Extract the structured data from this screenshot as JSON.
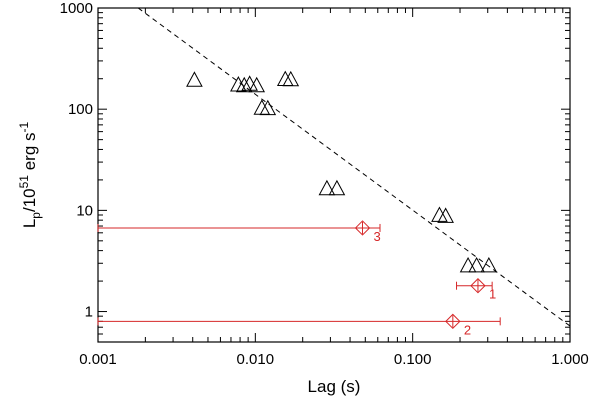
{
  "chart_data": {
    "type": "scatter",
    "title": "",
    "xlabel": "Lag (s)",
    "ylabel": {
      "base": "L",
      "base_sub": "p",
      "mid": "/10",
      "mid_sup": "51",
      "unit": " erg s",
      "unit_sup": "-1"
    },
    "x_scale": "log",
    "y_scale": "log",
    "xlim": [
      0.001,
      1.0
    ],
    "ylim": [
      0.5,
      1000
    ],
    "x_ticks": [
      {
        "value": 0.001,
        "label": "0.001"
      },
      {
        "value": 0.01,
        "label": "0.010"
      },
      {
        "value": 0.1,
        "label": "0.100"
      },
      {
        "value": 1.0,
        "label": "1.000"
      }
    ],
    "y_ticks": [
      {
        "value": 1,
        "label": "1"
      },
      {
        "value": 10,
        "label": "10"
      },
      {
        "value": 100,
        "label": "100"
      },
      {
        "value": 1000,
        "label": "1000"
      }
    ],
    "grid": false,
    "legend": "none",
    "colors": {
      "triangles": "#000000",
      "highlight": "#d62728",
      "fit_line": "#000000"
    },
    "fit_line": {
      "style": "dashed",
      "points": [
        [
          0.0018,
          1000
        ],
        [
          1.0,
          0.72
        ]
      ]
    },
    "series": [
      {
        "marker": "triangle",
        "points": [
          {
            "x": 0.0041,
            "y": 195
          },
          {
            "x": 0.0078,
            "y": 175
          },
          {
            "x": 0.0085,
            "y": 172
          },
          {
            "x": 0.0092,
            "y": 178
          },
          {
            "x": 0.0102,
            "y": 172
          },
          {
            "x": 0.011,
            "y": 103
          },
          {
            "x": 0.012,
            "y": 102
          },
          {
            "x": 0.0155,
            "y": 198
          },
          {
            "x": 0.0168,
            "y": 197
          },
          {
            "x": 0.0285,
            "y": 16.5
          },
          {
            "x": 0.033,
            "y": 16.5
          },
          {
            "x": 0.148,
            "y": 9.0
          },
          {
            "x": 0.162,
            "y": 8.8
          },
          {
            "x": 0.225,
            "y": 2.85
          },
          {
            "x": 0.255,
            "y": 2.85
          },
          {
            "x": 0.305,
            "y": 2.85
          }
        ]
      },
      {
        "marker": "diamond",
        "points": [
          {
            "x": 0.26,
            "y": 1.8,
            "xerr_low": 0.19,
            "xerr_high": 0.32,
            "label": "1"
          },
          {
            "x": 0.18,
            "y": 0.8,
            "xerr_low": 0.001,
            "xerr_high": 0.36,
            "label": "2"
          },
          {
            "x": 0.048,
            "y": 6.7,
            "xerr_low": 0.001,
            "xerr_high": 0.062,
            "label": "3"
          }
        ]
      }
    ]
  }
}
